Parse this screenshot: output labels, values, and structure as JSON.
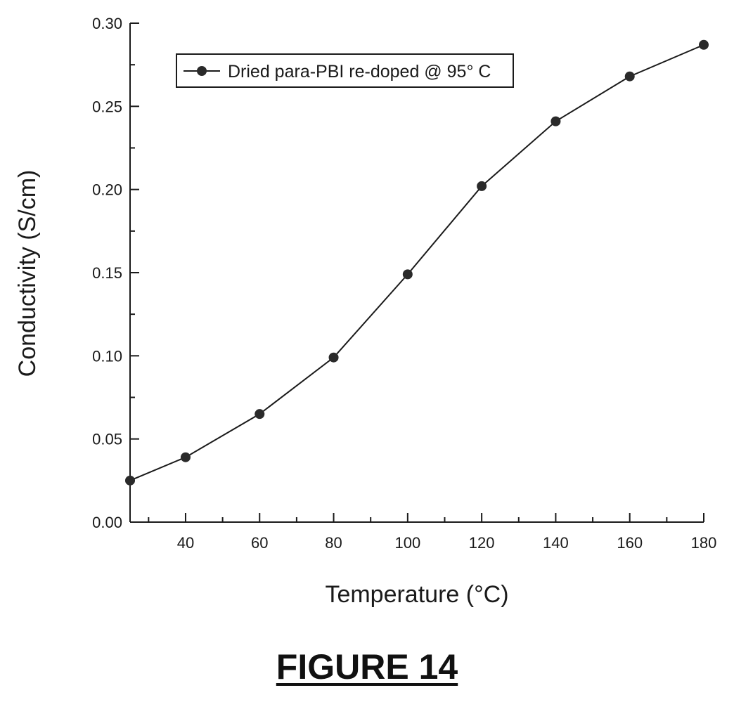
{
  "figure": {
    "caption": "FIGURE 14"
  },
  "colors": {
    "ink": "#1a1a1a",
    "marker": "#2a2a2a"
  },
  "chart_data": {
    "type": "line",
    "title": "",
    "xlabel": "Temperature (°C)",
    "ylabel": "Conductivity (S/cm)",
    "xlim": [
      25,
      180
    ],
    "ylim": [
      0,
      0.3
    ],
    "x_ticks": [
      40,
      60,
      80,
      100,
      120,
      140,
      160,
      180
    ],
    "x_tick_labels": [
      "40",
      "60",
      "80",
      "100",
      "120",
      "140",
      "160",
      "180"
    ],
    "y_ticks": [
      0,
      0.05,
      0.1,
      0.15,
      0.2,
      0.25,
      0.3
    ],
    "y_tick_labels": [
      "0.00",
      "0.05",
      "0.10",
      "0.15",
      "0.20",
      "0.25",
      "0.30"
    ],
    "grid": false,
    "legend_position": "top-left",
    "series": [
      {
        "name": "Dried para-PBI re-doped @ 95° C",
        "x": [
          25,
          40,
          60,
          80,
          100,
          120,
          140,
          160,
          180
        ],
        "y": [
          0.025,
          0.039,
          0.065,
          0.099,
          0.149,
          0.202,
          0.241,
          0.268,
          0.287
        ]
      }
    ]
  }
}
